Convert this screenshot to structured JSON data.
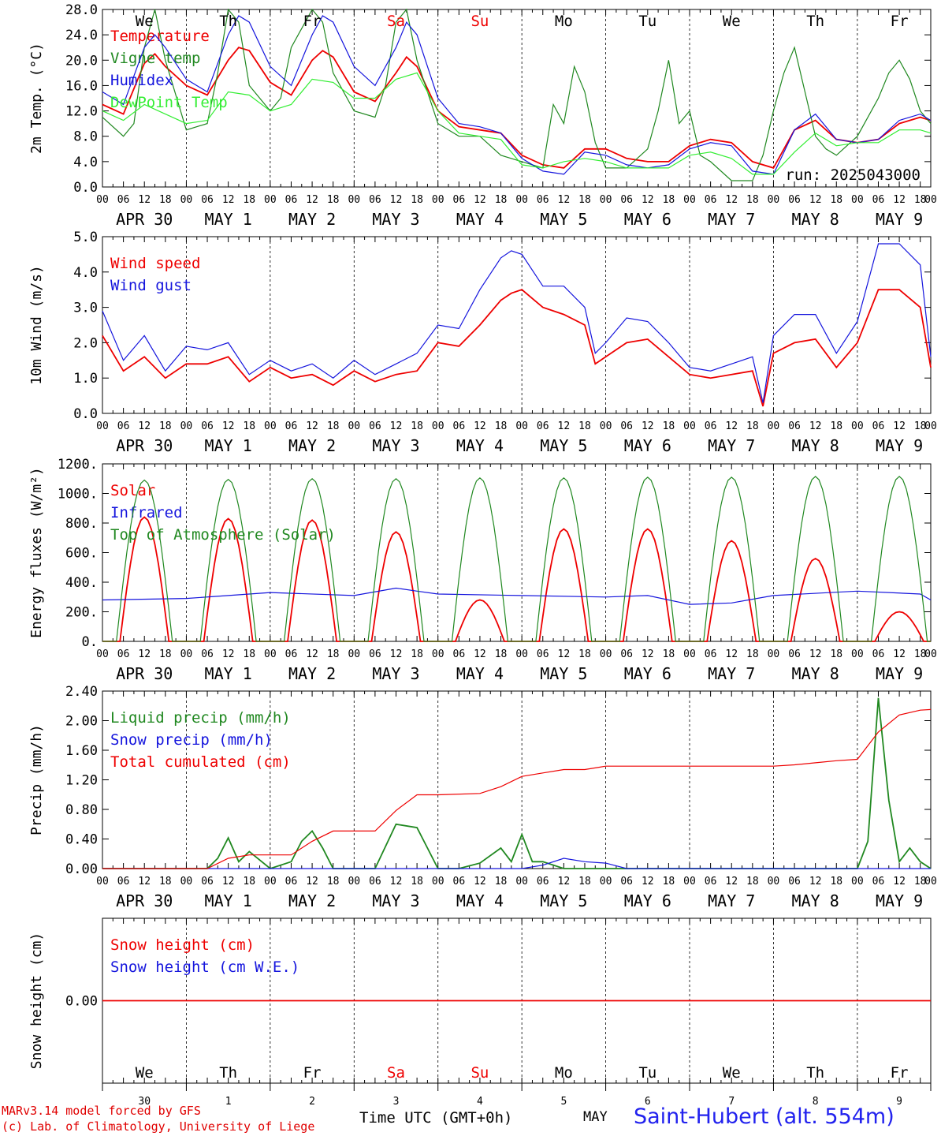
{
  "run_label": "run: 2025043000",
  "station": "Saint-Hubert (alt. 554m)",
  "footer": {
    "credit_line1": "MARv3.14 model forced by GFS",
    "credit_line2": "(c) Lab. of Climatology, University of Liege",
    "time_label": "Time UTC (GMT+0h)",
    "month_label": "MAY"
  },
  "weekdays": [
    {
      "label": "We",
      "color": "#000000"
    },
    {
      "label": "Th",
      "color": "#000000"
    },
    {
      "label": "Fr",
      "color": "#000000"
    },
    {
      "label": "Sa",
      "color": "#ee0000"
    },
    {
      "label": "Su",
      "color": "#ee0000"
    },
    {
      "label": "Mo",
      "color": "#000000"
    },
    {
      "label": "Tu",
      "color": "#000000"
    },
    {
      "label": "We",
      "color": "#000000"
    },
    {
      "label": "Th",
      "color": "#000000"
    },
    {
      "label": "Fr",
      "color": "#000000"
    }
  ],
  "date_labels": [
    "APR 30",
    "MAY  1",
    "MAY  2",
    "MAY  3",
    "MAY  4",
    "MAY  5",
    "MAY  6",
    "MAY  7",
    "MAY  8",
    "MAY  9"
  ],
  "day_numbers": [
    "30",
    "1",
    "2",
    "3",
    "4",
    "5",
    "6",
    "7",
    "8",
    "9"
  ],
  "hour_labels": [
    "00",
    "06",
    "12",
    "18"
  ],
  "last_hour_label": "00",
  "colors": {
    "red": "#ee0000",
    "darkgreen": "#208820",
    "blue": "#1515dd",
    "lightgreen": "#33ee33"
  },
  "chart_data": [
    {
      "type": "line",
      "ylabel": "2m Temp. (°C)",
      "ylim": [
        0,
        28
      ],
      "yticks": [
        "0.0",
        "4.0",
        "8.0",
        "12.0",
        "16.0",
        "20.0",
        "24.0",
        "28.0"
      ],
      "x_unit": "hours since APR 30 00 UTC",
      "series": [
        {
          "name": "Temperature",
          "color": "#ee0000",
          "x": [
            0,
            6,
            12,
            15,
            18,
            24,
            30,
            36,
            39,
            42,
            48,
            54,
            60,
            63,
            66,
            72,
            78,
            84,
            87,
            90,
            96,
            102,
            108,
            114,
            120,
            126,
            132,
            138,
            144,
            150,
            156,
            162,
            168,
            174,
            180,
            186,
            192,
            198,
            204,
            210,
            216,
            222,
            228,
            234,
            237
          ],
          "y": [
            13,
            11.5,
            19.5,
            21,
            19,
            16,
            14.5,
            20,
            22,
            21.5,
            16.5,
            14.5,
            20,
            21.5,
            20.5,
            15,
            13.5,
            18,
            20.5,
            19,
            12,
            9.5,
            9,
            8.5,
            5,
            3.5,
            3,
            6,
            6,
            4.5,
            4,
            4,
            6.5,
            7.5,
            7,
            4,
            3,
            9,
            10.5,
            7.5,
            7,
            7.5,
            10,
            11,
            10.5
          ]
        },
        {
          "name": "Vigne temp",
          "color": "#208820",
          "x": [
            0,
            6,
            9,
            12,
            15,
            18,
            24,
            30,
            33,
            36,
            39,
            42,
            48,
            51,
            54,
            60,
            63,
            66,
            72,
            78,
            81,
            84,
            87,
            90,
            96,
            102,
            108,
            114,
            120,
            126,
            129,
            132,
            135,
            138,
            141,
            144,
            150,
            156,
            159,
            162,
            165,
            168,
            171,
            174,
            180,
            186,
            189,
            192,
            195,
            198,
            201,
            204,
            207,
            210,
            216,
            222,
            225,
            228,
            231,
            234,
            237
          ],
          "y": [
            11,
            8,
            10,
            22,
            29,
            20,
            9,
            10,
            18,
            28,
            26,
            16,
            12,
            14,
            22,
            29,
            26,
            18,
            12,
            11,
            16,
            26,
            28,
            20,
            10,
            8,
            8,
            5,
            4,
            3,
            13,
            10,
            19,
            15,
            7,
            3,
            3,
            6,
            12,
            20,
            10,
            12,
            5,
            4,
            1,
            1,
            5,
            12,
            18,
            22,
            15,
            8,
            6,
            5,
            8,
            14,
            18,
            20,
            17,
            12,
            10
          ]
        },
        {
          "name": "Humidex",
          "color": "#1515dd",
          "x": [
            0,
            6,
            12,
            15,
            18,
            24,
            30,
            36,
            39,
            42,
            48,
            54,
            60,
            63,
            66,
            72,
            78,
            84,
            87,
            90,
            96,
            102,
            108,
            114,
            120,
            126,
            132,
            138,
            144,
            150,
            156,
            162,
            168,
            174,
            180,
            186,
            192,
            198,
            204,
            210,
            216,
            222,
            228,
            234,
            237
          ],
          "y": [
            15,
            13,
            22,
            24,
            22,
            17,
            15,
            24,
            27,
            26,
            19,
            16,
            24,
            27,
            26,
            19,
            16,
            22,
            26,
            24,
            14,
            10,
            9.5,
            8.5,
            4.5,
            2.5,
            2,
            5.5,
            5,
            3.5,
            3,
            3.5,
            6,
            7,
            6.5,
            2.5,
            2,
            9,
            11.5,
            7.5,
            7,
            7.5,
            10.5,
            11.5,
            10.5
          ]
        },
        {
          "name": "DewPoint Temp",
          "color": "#33ee33",
          "x": [
            0,
            6,
            12,
            18,
            24,
            30,
            36,
            42,
            48,
            54,
            60,
            66,
            72,
            78,
            84,
            90,
            96,
            102,
            108,
            114,
            120,
            126,
            132,
            138,
            144,
            150,
            156,
            162,
            168,
            174,
            180,
            186,
            192,
            198,
            204,
            210,
            216,
            222,
            228,
            234,
            237
          ],
          "y": [
            12,
            10.5,
            13,
            11.5,
            10,
            10.5,
            15,
            14.5,
            12,
            13,
            17,
            16.5,
            14,
            14,
            17,
            18,
            12,
            8.5,
            8,
            7.5,
            3.5,
            3,
            4,
            4.5,
            4,
            3,
            3,
            3,
            5,
            5.5,
            4.5,
            2,
            2,
            5.5,
            8.5,
            6.5,
            7,
            7,
            9,
            9,
            8.5
          ]
        }
      ]
    },
    {
      "type": "line",
      "ylabel": "10m Wind (m/s)",
      "ylim": [
        0,
        5
      ],
      "yticks": [
        "0.0",
        "1.0",
        "2.0",
        "3.0",
        "4.0",
        "5.0"
      ],
      "x_unit": "hours since APR 30 00 UTC",
      "series": [
        {
          "name": "Wind speed",
          "color": "#ee0000",
          "x": [
            0,
            6,
            12,
            18,
            24,
            30,
            36,
            42,
            48,
            54,
            60,
            66,
            72,
            78,
            84,
            90,
            96,
            102,
            108,
            114,
            117,
            120,
            126,
            132,
            138,
            141,
            144,
            150,
            156,
            162,
            168,
            174,
            180,
            186,
            189,
            192,
            198,
            204,
            210,
            216,
            222,
            228,
            234,
            237
          ],
          "y": [
            2.2,
            1.2,
            1.6,
            1.0,
            1.4,
            1.4,
            1.6,
            0.9,
            1.3,
            1.0,
            1.1,
            0.8,
            1.2,
            0.9,
            1.1,
            1.2,
            2.0,
            1.9,
            2.5,
            3.2,
            3.4,
            3.5,
            3.0,
            2.8,
            2.5,
            1.4,
            1.6,
            2.0,
            2.1,
            1.6,
            1.1,
            1.0,
            1.1,
            1.2,
            0.2,
            1.7,
            2.0,
            2.1,
            1.3,
            2.0,
            3.5,
            3.5,
            3.0,
            1.3
          ]
        },
        {
          "name": "Wind gust",
          "color": "#1515dd",
          "x": [
            0,
            6,
            12,
            18,
            24,
            30,
            36,
            42,
            48,
            54,
            60,
            66,
            72,
            78,
            84,
            90,
            96,
            102,
            108,
            114,
            117,
            120,
            126,
            132,
            138,
            141,
            144,
            150,
            156,
            162,
            168,
            174,
            180,
            186,
            189,
            192,
            198,
            204,
            210,
            216,
            222,
            228,
            234,
            237
          ],
          "y": [
            2.9,
            1.5,
            2.2,
            1.2,
            1.9,
            1.8,
            2.0,
            1.1,
            1.5,
            1.2,
            1.4,
            1.0,
            1.5,
            1.1,
            1.4,
            1.7,
            2.5,
            2.4,
            3.5,
            4.4,
            4.6,
            4.5,
            3.6,
            3.6,
            3.0,
            1.7,
            2.0,
            2.7,
            2.6,
            2.0,
            1.3,
            1.2,
            1.4,
            1.6,
            0.3,
            2.2,
            2.8,
            2.8,
            1.7,
            2.6,
            4.8,
            4.8,
            4.2,
            1.6
          ]
        }
      ]
    },
    {
      "type": "line",
      "ylabel": "Energy fluxes (W/m²)",
      "ylim": [
        0,
        1200
      ],
      "yticks": [
        "0.",
        "200.",
        "400.",
        "600.",
        "800.",
        "1000.",
        "1200."
      ],
      "x_unit": "hours since APR 30 00 UTC",
      "series": [
        {
          "name": "Solar",
          "color": "#ee0000",
          "diurnal": true,
          "sunrise": 5,
          "sunset": 19,
          "peaks": [
            840,
            830,
            820,
            740,
            280,
            760,
            760,
            680,
            560,
            200
          ]
        },
        {
          "name": "Infrared",
          "color": "#1515dd",
          "x": [
            0,
            24,
            48,
            72,
            84,
            90,
            96,
            120,
            144,
            156,
            168,
            180,
            192,
            216,
            234,
            237
          ],
          "y": [
            280,
            290,
            330,
            310,
            360,
            340,
            320,
            310,
            300,
            310,
            250,
            260,
            310,
            340,
            320,
            280
          ]
        },
        {
          "name": "Top of Atmosphere (Solar)",
          "color": "#208820",
          "diurnal": true,
          "sunrise": 4,
          "sunset": 20,
          "peaks": [
            1090,
            1095,
            1100,
            1100,
            1105,
            1105,
            1110,
            1110,
            1115,
            1115
          ]
        }
      ]
    },
    {
      "type": "line",
      "ylabel": "Precip (mm/h)",
      "ylim": [
        0,
        2.6
      ],
      "yticks": [
        "0.00",
        "0.40",
        "0.80",
        "1.20",
        "1.60",
        "2.00",
        "2.40"
      ],
      "x_unit": "hours since APR 30 00 UTC",
      "series": [
        {
          "name": "Liquid precip (mm/h)",
          "color": "#208820",
          "x": [
            0,
            30,
            33,
            36,
            39,
            42,
            48,
            54,
            57,
            60,
            63,
            66,
            78,
            84,
            90,
            93,
            96,
            102,
            108,
            114,
            117,
            120,
            123,
            126,
            132,
            216,
            219,
            222,
            225,
            228,
            231,
            234,
            237
          ],
          "y": [
            0,
            0,
            0.15,
            0.45,
            0.1,
            0.25,
            0,
            0.1,
            0.4,
            0.55,
            0.3,
            0,
            0,
            0.65,
            0.6,
            0.3,
            0,
            0,
            0.08,
            0.3,
            0.1,
            0.5,
            0.1,
            0.1,
            0,
            0,
            0.4,
            2.5,
            1.0,
            0.1,
            0.3,
            0.1,
            0
          ]
        },
        {
          "name": "Snow precip (mm/h)",
          "color": "#1515dd",
          "x": [
            0,
            120,
            126,
            132,
            138,
            144,
            150,
            237
          ],
          "y": [
            0,
            0,
            0.05,
            0.15,
            0.1,
            0.08,
            0,
            0
          ]
        },
        {
          "name": "Total cumulated (cm)",
          "color": "#ee0000",
          "x": [
            0,
            30,
            36,
            42,
            48,
            54,
            60,
            66,
            72,
            78,
            84,
            90,
            96,
            108,
            114,
            120,
            126,
            132,
            138,
            144,
            150,
            180,
            192,
            198,
            204,
            210,
            216,
            222,
            228,
            234,
            237
          ],
          "y": [
            0,
            0,
            0.15,
            0.2,
            0.2,
            0.2,
            0.4,
            0.55,
            0.55,
            0.55,
            0.85,
            1.08,
            1.08,
            1.1,
            1.2,
            1.35,
            1.4,
            1.45,
            1.45,
            1.5,
            1.5,
            1.5,
            1.5,
            1.52,
            1.55,
            1.58,
            1.6,
            2.0,
            2.25,
            2.32,
            2.33
          ]
        }
      ]
    },
    {
      "type": "line",
      "ylabel": "Snow height (cm)",
      "ylim": [
        -0.08,
        0.08
      ],
      "yticks": [
        "0.00"
      ],
      "x_unit": "hours since APR 30 00 UTC",
      "series": [
        {
          "name": "Snow height (cm)",
          "color": "#ee0000",
          "x": [
            0,
            237
          ],
          "y": [
            0,
            0
          ]
        },
        {
          "name": "Snow height (cm W.E.)",
          "color": "#1515dd",
          "x": [],
          "y": []
        }
      ]
    }
  ]
}
